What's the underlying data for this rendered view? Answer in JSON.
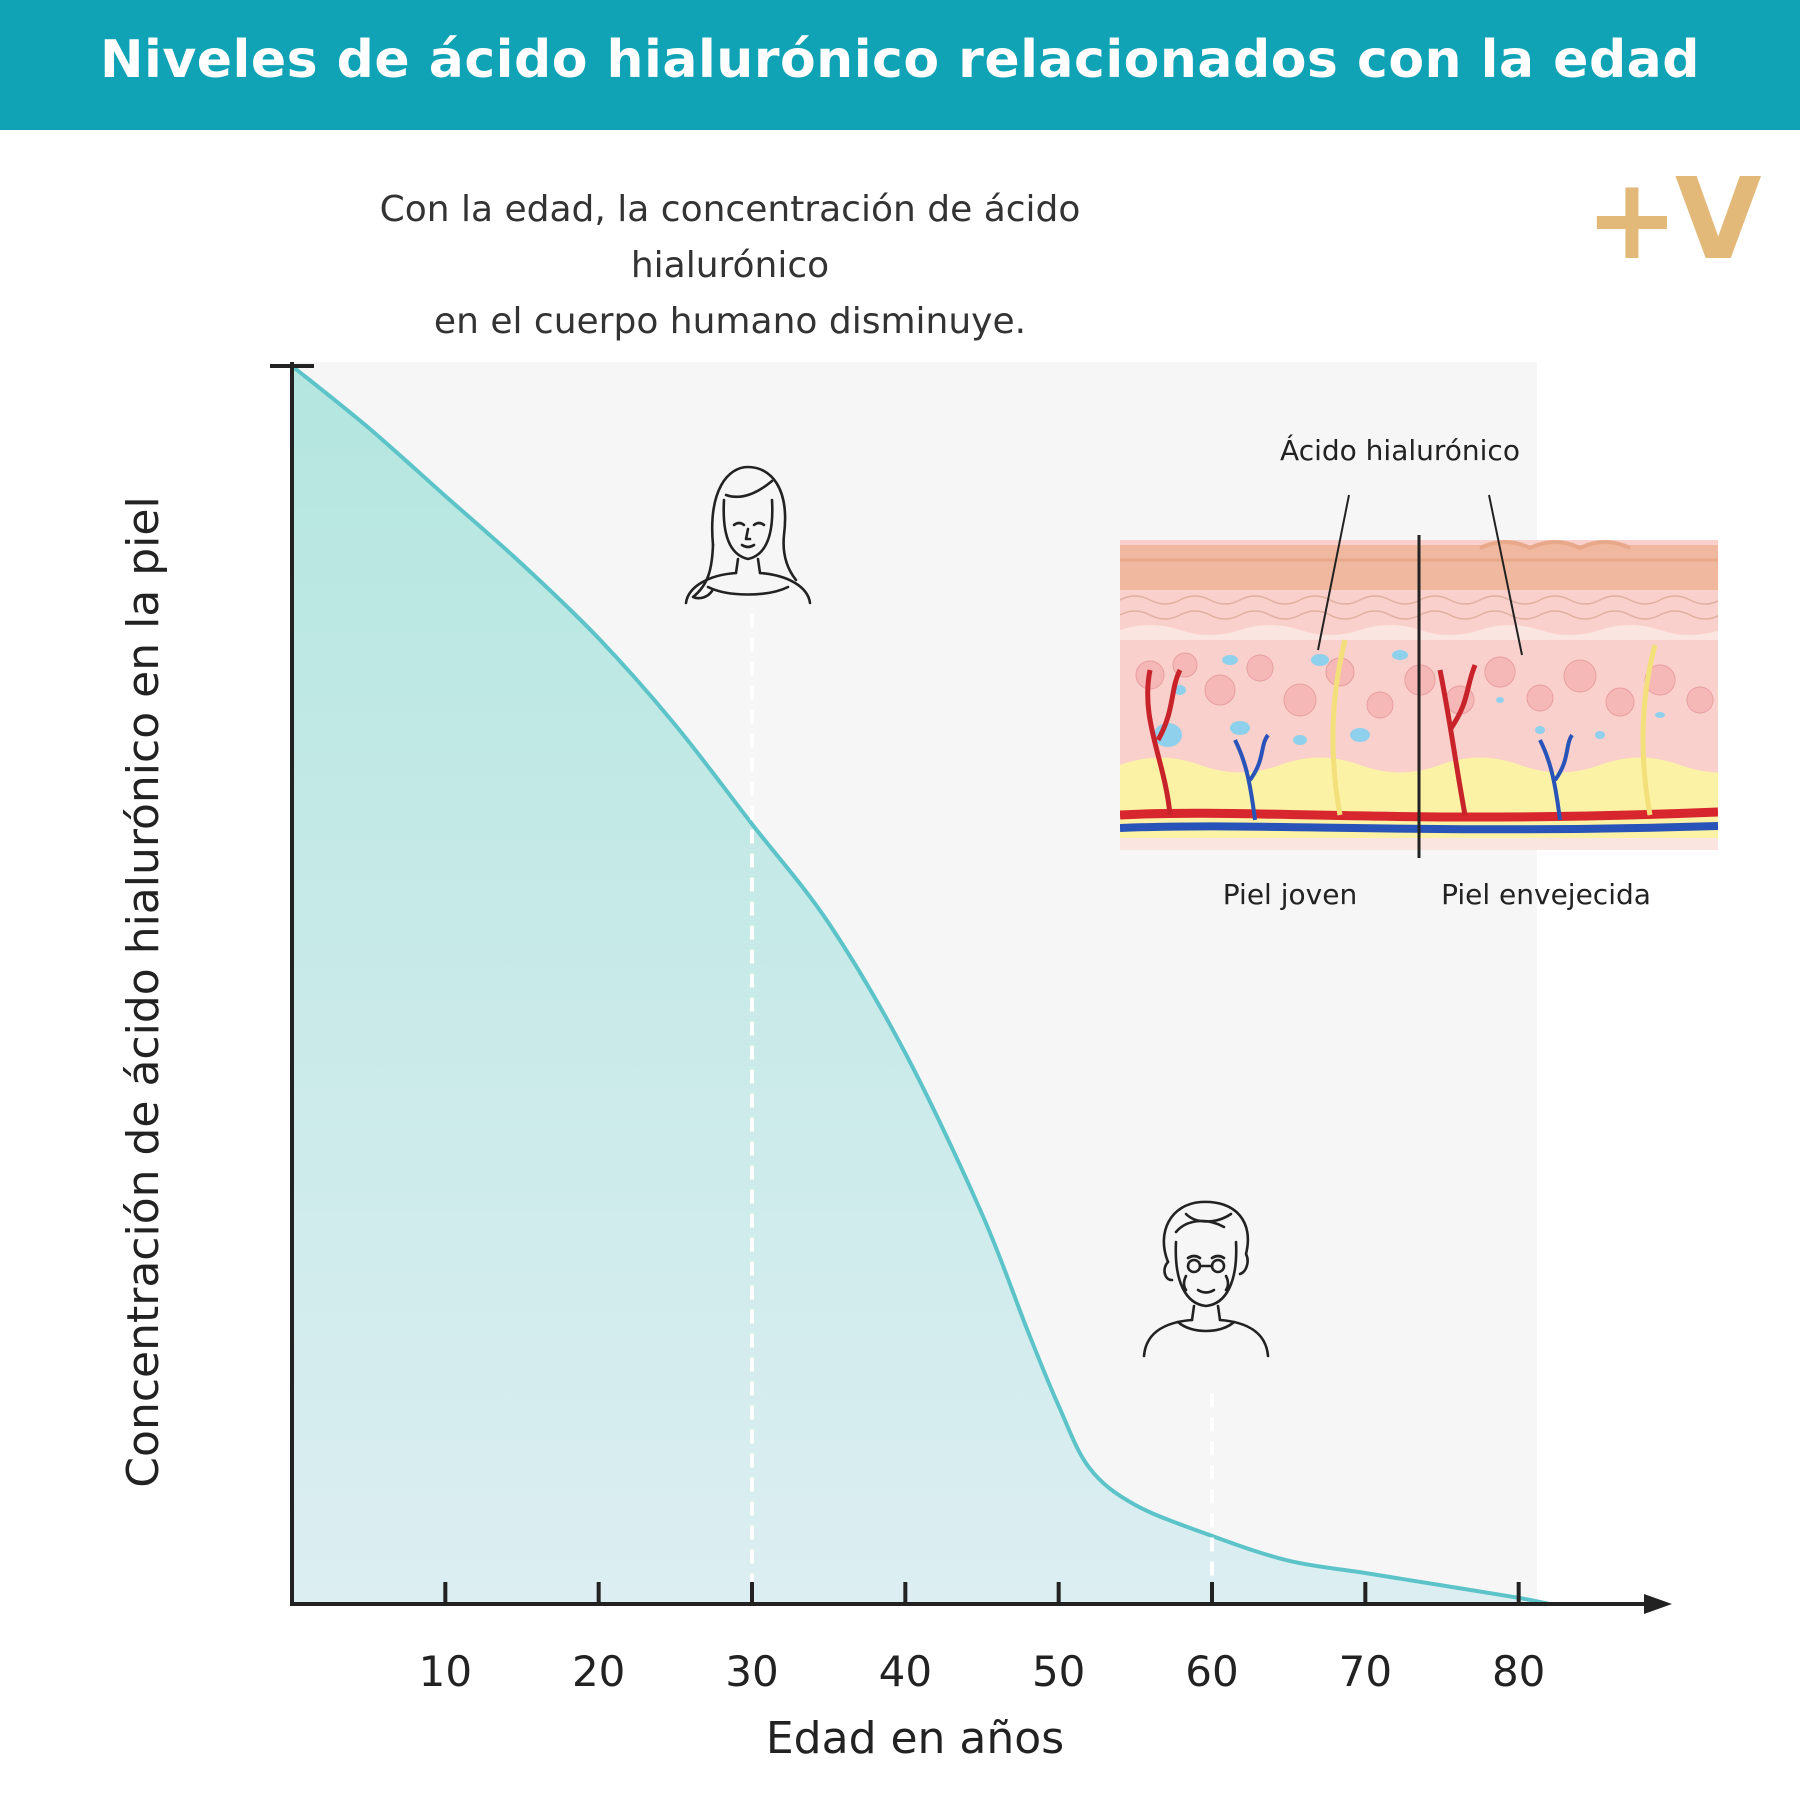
{
  "header": {
    "title": "Niveles de ácido hialurónico relacionados con la edad",
    "subtitle_line1": "Con la edad, la concentración de ácido hialurónico",
    "subtitle_line2": "en el cuerpo humano disminuye.",
    "logo_text": "+V"
  },
  "colors": {
    "banner": "#0fa3b5",
    "curve": "#5cc4c9",
    "fill_top": "#b4e6df",
    "fill_bottom": "#dceef2",
    "logo": "#e2b978"
  },
  "icons": [
    "young-woman-icon",
    "elderly-woman-icon",
    "skin-cross-section-illustration"
  ],
  "chart_data": {
    "type": "area",
    "xlabel": "Edad en años",
    "ylabel": "Concentración de ácido hialurónico en la piel",
    "x_ticks": [
      10,
      20,
      30,
      40,
      50,
      60,
      70,
      80
    ],
    "xlim": [
      0,
      90
    ],
    "ylim": [
      0,
      100
    ],
    "y_ticks_labeled": false,
    "grid": false,
    "x": [
      0,
      5,
      10,
      15,
      20,
      25,
      30,
      35,
      40,
      45,
      48,
      50,
      52,
      55,
      60,
      65,
      70,
      75,
      80,
      82
    ],
    "y": [
      100,
      95,
      89.5,
      84,
      78,
      71,
      63,
      55,
      44.5,
      31.5,
      22,
      16,
      11,
      8,
      5.5,
      3.5,
      2.5,
      1.5,
      0.5,
      0
    ],
    "markers": [
      {
        "x": 30,
        "y": 80,
        "icon": "young-woman-icon"
      },
      {
        "x": 60,
        "y": 17,
        "icon": "elderly-woman-icon"
      }
    ],
    "inset": {
      "annotation": "Ácido hialurónico",
      "left_label": "Piel joven",
      "right_label": "Piel envejecida"
    }
  }
}
